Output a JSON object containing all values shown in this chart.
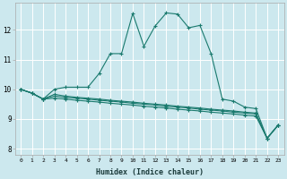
{
  "xlabel": "Humidex (Indice chaleur)",
  "background_color": "#cce8ee",
  "grid_color": "#ffffff",
  "line_color": "#1a7a6e",
  "xlim": [
    -0.5,
    23.5
  ],
  "ylim": [
    7.8,
    12.9
  ],
  "yticks": [
    8,
    9,
    10,
    11,
    12
  ],
  "xticks": [
    0,
    1,
    2,
    3,
    4,
    5,
    6,
    7,
    8,
    9,
    10,
    11,
    12,
    13,
    14,
    15,
    16,
    17,
    18,
    19,
    20,
    21,
    22,
    23
  ],
  "series": [
    [
      10.0,
      9.87,
      9.67,
      10.0,
      10.07,
      10.07,
      10.07,
      10.53,
      11.2,
      11.2,
      12.55,
      11.45,
      12.13,
      12.57,
      12.53,
      12.07,
      12.15,
      11.2,
      9.67,
      9.6,
      9.4,
      9.35,
      8.35,
      8.8
    ],
    [
      10.0,
      9.87,
      9.67,
      9.83,
      9.77,
      9.73,
      9.7,
      9.67,
      9.63,
      9.6,
      9.57,
      9.53,
      9.5,
      9.47,
      9.43,
      9.4,
      9.37,
      9.33,
      9.3,
      9.27,
      9.23,
      9.2,
      8.35,
      8.8
    ],
    [
      10.0,
      9.87,
      9.67,
      9.77,
      9.73,
      9.7,
      9.67,
      9.63,
      9.6,
      9.57,
      9.53,
      9.5,
      9.47,
      9.43,
      9.4,
      9.37,
      9.33,
      9.3,
      9.27,
      9.23,
      9.2,
      9.17,
      8.35,
      8.8
    ],
    [
      10.0,
      9.87,
      9.67,
      9.7,
      9.67,
      9.63,
      9.6,
      9.57,
      9.53,
      9.5,
      9.47,
      9.43,
      9.4,
      9.37,
      9.33,
      9.3,
      9.27,
      9.23,
      9.2,
      9.17,
      9.13,
      9.1,
      8.35,
      8.8
    ]
  ]
}
